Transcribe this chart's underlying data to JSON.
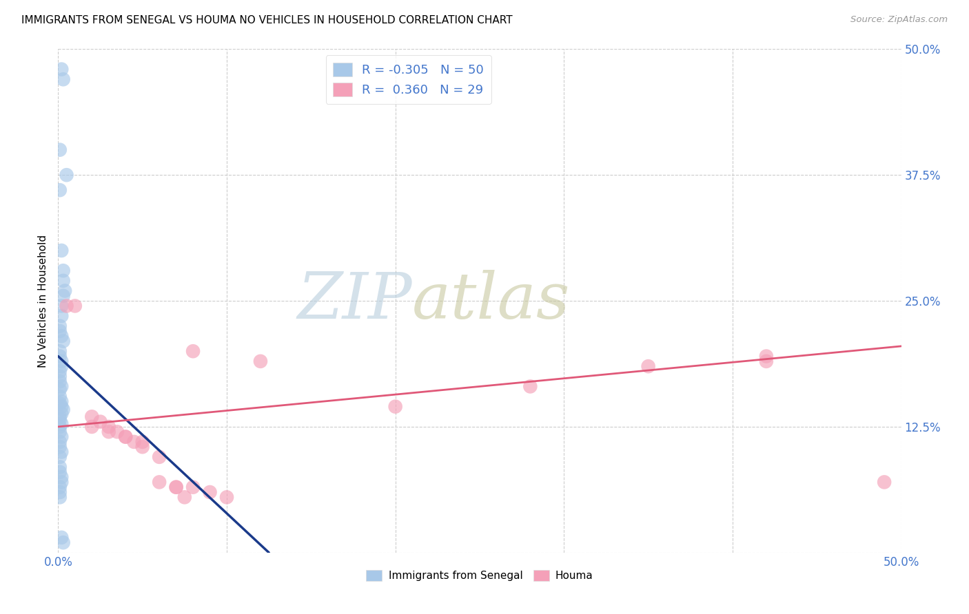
{
  "title": "IMMIGRANTS FROM SENEGAL VS HOUMA NO VEHICLES IN HOUSEHOLD CORRELATION CHART",
  "source": "Source: ZipAtlas.com",
  "ylabel": "No Vehicles in Household",
  "xlim": [
    0.0,
    0.5
  ],
  "ylim": [
    0.0,
    0.5
  ],
  "xticks": [
    0.0,
    0.1,
    0.2,
    0.3,
    0.4,
    0.5
  ],
  "yticks": [
    0.0,
    0.125,
    0.25,
    0.375,
    0.5
  ],
  "blue_R": -0.305,
  "blue_N": 50,
  "pink_R": 0.36,
  "pink_N": 29,
  "blue_color": "#a8c8e8",
  "pink_color": "#f4a0b8",
  "blue_line_color": "#1a3a8a",
  "pink_line_color": "#e05878",
  "legend_label_blue": "Immigrants from Senegal",
  "legend_label_pink": "Houma",
  "blue_scatter_x": [
    0.002,
    0.003,
    0.001,
    0.001,
    0.005,
    0.002,
    0.003,
    0.003,
    0.004,
    0.003,
    0.002,
    0.002,
    0.001,
    0.001,
    0.002,
    0.003,
    0.001,
    0.001,
    0.002,
    0.002,
    0.001,
    0.001,
    0.001,
    0.002,
    0.001,
    0.001,
    0.002,
    0.001,
    0.002,
    0.003,
    0.002,
    0.001,
    0.001,
    0.002,
    0.001,
    0.001,
    0.002,
    0.001,
    0.001,
    0.002,
    0.001,
    0.001,
    0.001,
    0.002,
    0.002,
    0.001,
    0.001,
    0.001,
    0.002,
    0.003
  ],
  "blue_scatter_y": [
    0.48,
    0.47,
    0.4,
    0.36,
    0.375,
    0.3,
    0.28,
    0.27,
    0.26,
    0.255,
    0.245,
    0.235,
    0.225,
    0.22,
    0.215,
    0.21,
    0.2,
    0.195,
    0.19,
    0.185,
    0.18,
    0.175,
    0.17,
    0.165,
    0.162,
    0.155,
    0.15,
    0.148,
    0.145,
    0.142,
    0.138,
    0.135,
    0.132,
    0.128,
    0.125,
    0.12,
    0.115,
    0.11,
    0.105,
    0.1,
    0.095,
    0.085,
    0.08,
    0.075,
    0.07,
    0.065,
    0.06,
    0.055,
    0.015,
    0.01
  ],
  "pink_scatter_x": [
    0.005,
    0.01,
    0.08,
    0.12,
    0.02,
    0.025,
    0.03,
    0.035,
    0.04,
    0.045,
    0.05,
    0.06,
    0.07,
    0.075,
    0.35,
    0.42,
    0.02,
    0.03,
    0.04,
    0.05,
    0.06,
    0.07,
    0.08,
    0.09,
    0.1,
    0.2,
    0.28,
    0.42,
    0.49
  ],
  "pink_scatter_y": [
    0.245,
    0.245,
    0.2,
    0.19,
    0.135,
    0.13,
    0.125,
    0.12,
    0.115,
    0.11,
    0.105,
    0.095,
    0.065,
    0.055,
    0.185,
    0.195,
    0.125,
    0.12,
    0.115,
    0.11,
    0.07,
    0.065,
    0.065,
    0.06,
    0.055,
    0.145,
    0.165,
    0.19,
    0.07
  ],
  "background_color": "#ffffff",
  "grid_color": "#cccccc",
  "right_tick_color": "#4477cc",
  "watermark_zip_color": "#c8d8e8",
  "watermark_atlas_color": "#c8c8b0"
}
